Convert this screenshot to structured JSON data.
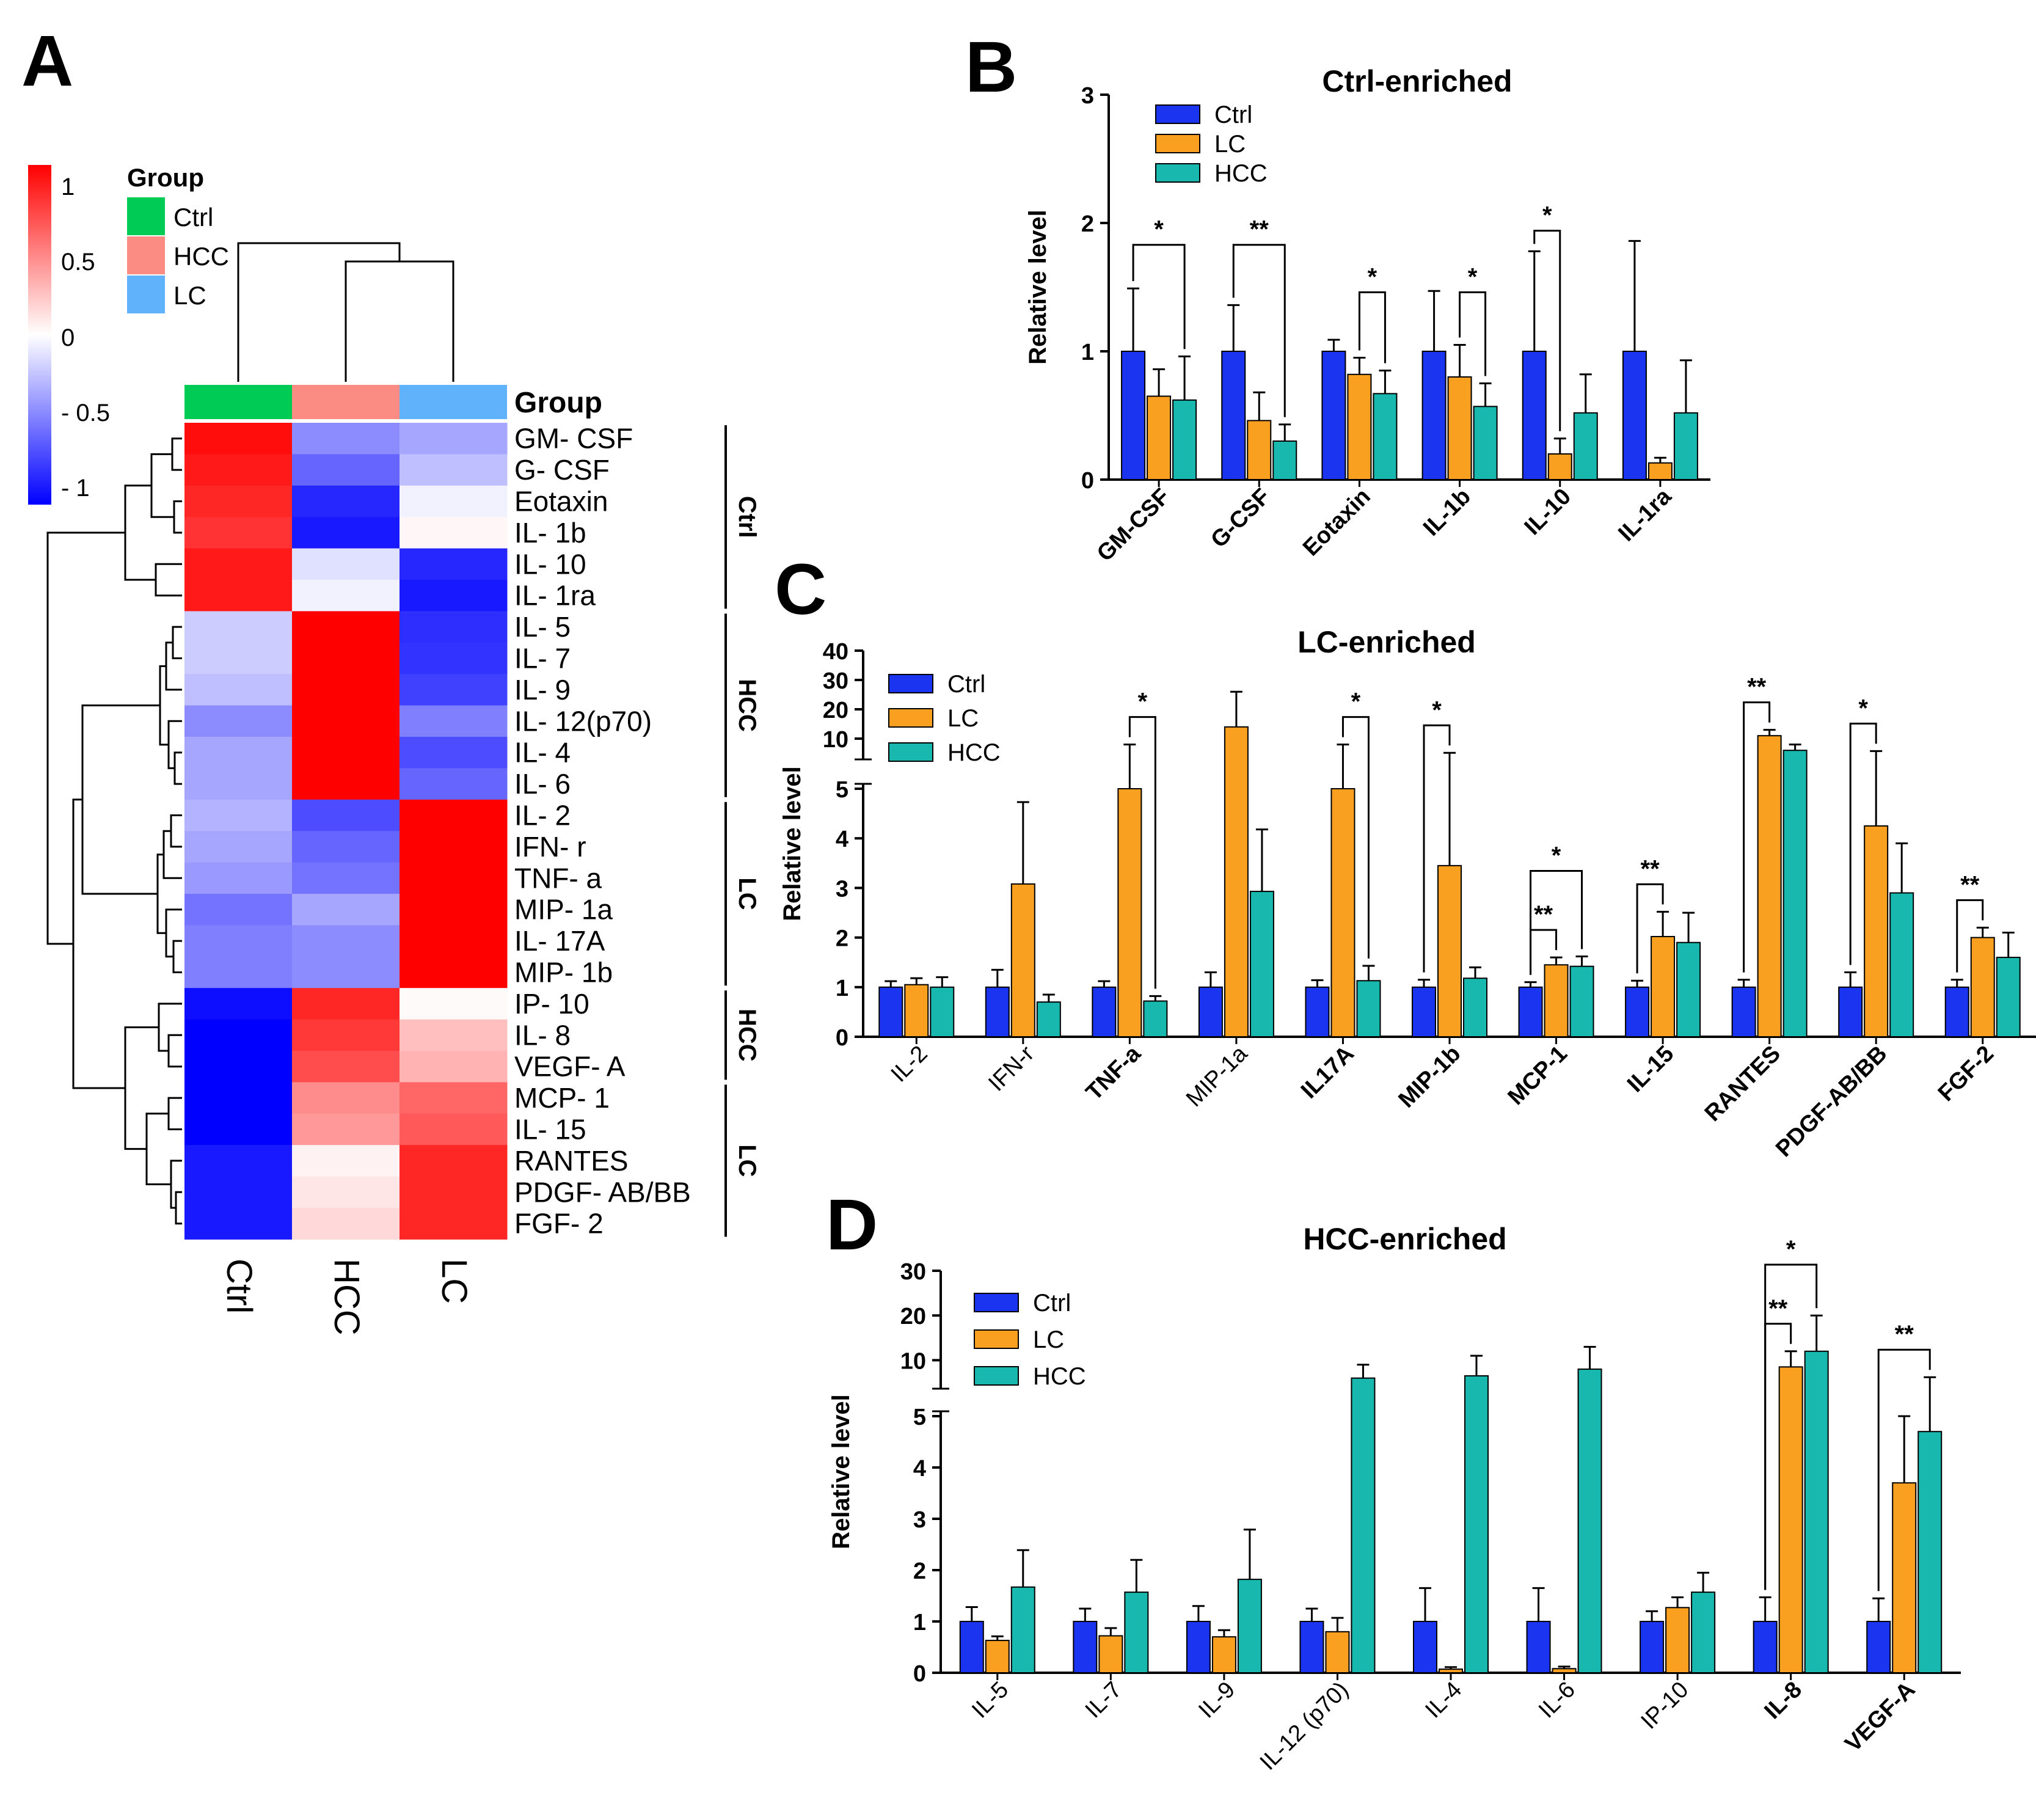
{
  "colors": {
    "ctrl": "#1a34f0",
    "lc": "#f9a020",
    "hcc": "#18b8ae",
    "group_ctrl": "#00cc55",
    "group_hcc": "#fa8c84",
    "group_lc": "#60b2fa"
  },
  "panel_a": {
    "label": "A",
    "legend_title": "Group",
    "group_legend": [
      "Ctrl",
      "HCC",
      "LC"
    ],
    "scale_ticks": [
      "1",
      "0.5",
      "0",
      "- 0.5",
      "- 1"
    ],
    "group_bar_label": "Group",
    "columns": [
      "Ctrl",
      "HCC",
      "LC"
    ],
    "rows": [
      "GM- CSF",
      "G- CSF",
      "Eotaxin",
      "IL- 1b",
      "IL- 10",
      "IL- 1ra",
      "IL- 5",
      "IL- 7",
      "IL- 9",
      "IL- 12(p70)",
      "IL- 4",
      "IL- 6",
      "IL- 2",
      "IFN- r",
      "TNF- a",
      "MIP- 1a",
      "IL- 17A",
      "MIP- 1b",
      "IP- 10",
      "IL- 8",
      "VEGF- A",
      "MCP- 1",
      "IL- 15",
      "RANTES",
      "PDGF- AB/BB",
      "FGF- 2"
    ],
    "values": [
      [
        0.95,
        -0.45,
        -0.35
      ],
      [
        0.9,
        -0.6,
        -0.25
      ],
      [
        0.85,
        -0.85,
        -0.05
      ],
      [
        0.8,
        -0.9,
        0.03
      ],
      [
        0.9,
        -0.12,
        -0.85
      ],
      [
        0.9,
        -0.05,
        -0.9
      ],
      [
        -0.2,
        1.0,
        -0.82
      ],
      [
        -0.2,
        1.0,
        -0.8
      ],
      [
        -0.25,
        1.0,
        -0.75
      ],
      [
        -0.45,
        1.0,
        -0.5
      ],
      [
        -0.35,
        1.0,
        -0.7
      ],
      [
        -0.35,
        1.0,
        -0.6
      ],
      [
        -0.3,
        -0.7,
        1.0
      ],
      [
        -0.35,
        -0.6,
        1.0
      ],
      [
        -0.4,
        -0.55,
        1.0
      ],
      [
        -0.55,
        -0.35,
        1.0
      ],
      [
        -0.5,
        -0.45,
        1.0
      ],
      [
        -0.5,
        -0.45,
        1.0
      ],
      [
        -0.95,
        0.85,
        0.02
      ],
      [
        -1.0,
        0.78,
        0.25
      ],
      [
        -1.0,
        0.7,
        0.3
      ],
      [
        -1.0,
        0.45,
        0.6
      ],
      [
        -1.0,
        0.4,
        0.65
      ],
      [
        -0.9,
        0.05,
        0.85
      ],
      [
        -0.9,
        0.1,
        0.85
      ],
      [
        -0.9,
        0.15,
        0.85
      ]
    ],
    "brackets": [
      "Ctrl",
      "HCC",
      "LC",
      "HCC",
      "LC"
    ]
  },
  "chart_data": [
    {
      "panel": "B",
      "type": "bar",
      "title": "Ctrl-enriched",
      "ylabel": "Relative level",
      "ylim": [
        0,
        3
      ],
      "yticks": [
        "0",
        "1",
        "2",
        "3"
      ],
      "legend": [
        "Ctrl",
        "LC",
        "HCC"
      ],
      "categories": [
        "GM-CSF",
        "G-CSF",
        "Eotaxin",
        "IL-1b",
        "IL-10",
        "IL-1ra"
      ],
      "series": [
        {
          "name": "Ctrl",
          "values": [
            1.0,
            1.0,
            1.0,
            1.0,
            1.0,
            1.0
          ],
          "errors": [
            0.49,
            0.36,
            0.09,
            0.47,
            0.78,
            0.86
          ]
        },
        {
          "name": "LC",
          "values": [
            0.65,
            0.46,
            0.82,
            0.8,
            0.2,
            0.13
          ],
          "errors": [
            0.21,
            0.22,
            0.13,
            0.25,
            0.12,
            0.04
          ]
        },
        {
          "name": "HCC",
          "values": [
            0.62,
            0.3,
            0.67,
            0.57,
            0.52,
            0.52
          ],
          "errors": [
            0.34,
            0.13,
            0.18,
            0.18,
            0.3,
            0.41
          ]
        }
      ],
      "significance": [
        {
          "label": "*",
          "a": "Ctrl",
          "b": "HCC",
          "cat": 0,
          "y": 1.83
        },
        {
          "label": "**",
          "a": "Ctrl",
          "b": "HCC",
          "cat": 1,
          "y": 1.83
        },
        {
          "label": "*",
          "a": "LC",
          "b": "HCC",
          "cat": 2,
          "y": 1.46
        },
        {
          "label": "*",
          "a": "LC",
          "b": "HCC",
          "cat": 3,
          "y": 1.46
        },
        {
          "label": "*",
          "a": "Ctrl",
          "b": "LC",
          "cat": 4,
          "y": 1.94
        }
      ]
    },
    {
      "panel": "C",
      "type": "bar",
      "title": "LC-enriched",
      "ylabel": "Relative level",
      "ylim": [
        0,
        40
      ],
      "axis_break": [
        5,
        5
      ],
      "yticks_low": [
        "0",
        "1",
        "2",
        "3",
        "4",
        "5"
      ],
      "yticks_high": [
        "10",
        "20",
        "30",
        "40"
      ],
      "legend": [
        "Ctrl",
        "LC",
        "HCC"
      ],
      "categories": [
        "IL-2",
        "IFN-r",
        "TNF-a",
        "MIP-1a",
        "IL17A",
        "MIP-1b",
        "MCP-1",
        "IL-15",
        "RANTES",
        "PDGF-AB/BB",
        "FGF-2"
      ],
      "bold_categories": [
        "TNF-a",
        "IL17A",
        "MIP-1b",
        "MCP-1",
        "IL-15",
        "RANTES",
        "PDGF-AB/BB",
        "FGF-2"
      ],
      "series": [
        {
          "name": "Ctrl",
          "values": [
            1.0,
            1.0,
            1.0,
            1.0,
            1.0,
            1.0,
            1.0,
            1.0,
            1.0,
            1.0,
            1.0
          ],
          "errors": [
            0.12,
            0.35,
            0.12,
            0.3,
            0.14,
            0.15,
            0.1,
            0.13,
            0.15,
            0.3,
            0.15
          ]
        },
        {
          "name": "LC",
          "values": [
            1.05,
            3.08,
            5.0,
            14.0,
            5.0,
            3.45,
            1.45,
            2.02,
            11.0,
            4.25,
            2.0
          ],
          "errors": [
            0.13,
            1.65,
            3.0,
            12.0,
            3.0,
            1.7,
            0.15,
            0.5,
            2.0,
            1.5,
            0.2
          ]
        },
        {
          "name": "HCC",
          "values": [
            1.0,
            0.7,
            0.72,
            2.93,
            1.13,
            1.18,
            1.42,
            1.9,
            6.0,
            2.9,
            1.6
          ],
          "errors": [
            0.2,
            0.15,
            0.1,
            1.25,
            0.3,
            0.22,
            0.2,
            0.6,
            2.0,
            1.0,
            0.5
          ]
        }
      ],
      "significance": [
        {
          "label": "*",
          "a": "LC",
          "b": "HCC",
          "cat": 2
        },
        {
          "label": "*",
          "a": "LC",
          "b": "HCC",
          "cat": 4
        },
        {
          "label": "*",
          "a": "Ctrl",
          "b": "LC",
          "cat": 5
        },
        {
          "label": "**",
          "a": "Ctrl",
          "b": "LC",
          "cat": 6
        },
        {
          "label": "*",
          "a": "Ctrl",
          "b": "HCC",
          "cat": 6
        },
        {
          "label": "**",
          "a": "Ctrl",
          "b": "LC",
          "cat": 7
        },
        {
          "label": "**",
          "a": "Ctrl",
          "b": "LC",
          "cat": 8
        },
        {
          "label": "*",
          "a": "Ctrl",
          "b": "LC",
          "cat": 9
        },
        {
          "label": "**",
          "a": "Ctrl",
          "b": "LC",
          "cat": 10
        }
      ]
    },
    {
      "panel": "D",
      "type": "bar",
      "title": "HCC-enriched",
      "ylabel": "Relative level",
      "ylim": [
        0,
        30
      ],
      "axis_break": [
        5,
        5
      ],
      "yticks_low": [
        "0",
        "1",
        "2",
        "3",
        "4",
        "5"
      ],
      "yticks_high": [
        "10",
        "20",
        "30"
      ],
      "legend": [
        "Ctrl",
        "LC",
        "HCC"
      ],
      "categories": [
        "IL-5",
        "IL-7",
        "IL-9",
        "IL-12 (p70)",
        "IL-4",
        "IL-6",
        "IP-10",
        "IL-8",
        "VEGF-A"
      ],
      "bold_categories": [
        "IL-8",
        "VEGF-A"
      ],
      "series": [
        {
          "name": "Ctrl",
          "values": [
            1.0,
            1.0,
            1.0,
            1.0,
            1.0,
            1.0,
            1.0,
            1.0,
            1.0
          ],
          "errors": [
            0.28,
            0.25,
            0.3,
            0.25,
            0.65,
            0.65,
            0.2,
            0.47,
            0.45
          ]
        },
        {
          "name": "LC",
          "values": [
            0.63,
            0.72,
            0.7,
            0.8,
            0.07,
            0.08,
            1.27,
            8.5,
            3.7
          ],
          "errors": [
            0.08,
            0.15,
            0.13,
            0.27,
            0.04,
            0.04,
            0.2,
            3.5,
            1.3
          ]
        },
        {
          "name": "HCC",
          "values": [
            1.67,
            1.57,
            1.82,
            6.0,
            6.5,
            8.0,
            1.57,
            12.0,
            4.7
          ],
          "errors": [
            0.72,
            0.63,
            0.97,
            3.0,
            4.5,
            5.0,
            0.38,
            8.0,
            1.5
          ]
        }
      ],
      "significance": [
        {
          "label": "**",
          "a": "Ctrl",
          "b": "LC",
          "cat": 7
        },
        {
          "label": "*",
          "a": "Ctrl",
          "b": "HCC",
          "cat": 7
        },
        {
          "label": "**",
          "a": "Ctrl",
          "b": "HCC",
          "cat": 8
        }
      ]
    }
  ],
  "panel_labels": {
    "b": "B",
    "c": "C",
    "d": "D"
  }
}
